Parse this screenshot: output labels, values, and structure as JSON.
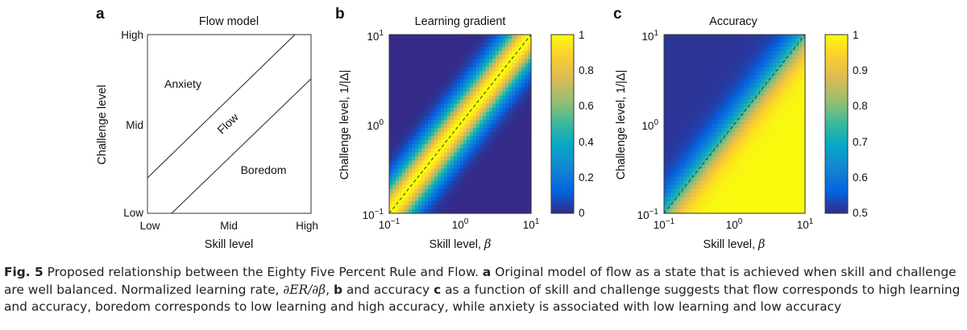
{
  "panels": [
    {
      "letter": "a",
      "title": "Flow model",
      "xlabel": "Skill level",
      "ylabel": "Challenge level",
      "xticks": [
        "Low",
        "Mid",
        "High"
      ],
      "yticks": [
        "High",
        "Mid",
        "Low"
      ],
      "regions": {
        "anxiety": "Anxiety",
        "flow": "Flow",
        "boredom": "Boredom"
      }
    },
    {
      "letter": "b",
      "title": "Learning gradient",
      "xlabel": "Skill level, ",
      "xlabel_sym": "β",
      "ylabel": "Challenge level, 1/|Δ|",
      "colorbar_ticks": [
        "1",
        "0.8",
        "0.6",
        "0.4",
        "0.2",
        "0"
      ]
    },
    {
      "letter": "c",
      "title": "Accuracy",
      "xlabel": "Skill level, ",
      "xlabel_sym": "β",
      "ylabel": "Challenge level, 1/|Δ|",
      "colorbar_ticks": [
        "1",
        "0.9",
        "0.8",
        "0.7",
        "0.6",
        "0.5"
      ]
    }
  ],
  "log_ticks": {
    "base": "10",
    "exps": [
      "−1",
      "0",
      "1"
    ]
  },
  "caption": {
    "fig_label": "Fig. 5",
    "seg1": " Proposed relationship between the Eighty Five Percent Rule and Flow. ",
    "a": "a",
    "seg2": " Original model of flow as a state that is achieved when skill and challenge are well balanced. Normalized learning rate, ",
    "math": "∂ER/∂β",
    "seg3": ", ",
    "b": "b",
    "seg4": " and accuracy ",
    "c": "c",
    "seg5": " as a function of skill and challenge suggests that flow corresponds to high learning and accuracy, boredom corresponds to low learning and high accuracy, while anxiety is associated with low learning and low accuracy"
  },
  "chart_data": [
    {
      "type": "line",
      "panel": "a",
      "title": "Flow model",
      "xlabel": "Skill level",
      "ylabel": "Challenge level",
      "x_categories": [
        "Low",
        "Mid",
        "High"
      ],
      "y_categories": [
        "Low",
        "Mid",
        "High"
      ],
      "series": [
        {
          "x": [
            0,
            0.9
          ],
          "y": [
            0.2,
            1.0
          ]
        },
        {
          "x": [
            0.15,
            1.0
          ],
          "y": [
            0,
            0.75
          ]
        }
      ],
      "annotations": [
        "Anxiety",
        "Flow",
        "Boredom"
      ]
    },
    {
      "type": "heatmap",
      "panel": "b",
      "title": "Learning gradient",
      "xlabel": "Skill level, β",
      "ylabel": "Challenge level, 1/|Δ|",
      "xscale": "log",
      "yscale": "log",
      "xlim": [
        0.1,
        10
      ],
      "ylim": [
        0.1,
        10
      ],
      "colorbar_range": [
        0,
        1
      ],
      "colormap": "parula",
      "diagonal": "dashed"
    },
    {
      "type": "heatmap",
      "panel": "c",
      "title": "Accuracy",
      "xlabel": "Skill level, β",
      "ylabel": "Challenge level, 1/|Δ|",
      "xscale": "log",
      "yscale": "log",
      "xlim": [
        0.1,
        10
      ],
      "ylim": [
        0.1,
        10
      ],
      "colorbar_range": [
        0.5,
        1
      ],
      "colormap": "parula",
      "diagonal": "dashed"
    }
  ]
}
